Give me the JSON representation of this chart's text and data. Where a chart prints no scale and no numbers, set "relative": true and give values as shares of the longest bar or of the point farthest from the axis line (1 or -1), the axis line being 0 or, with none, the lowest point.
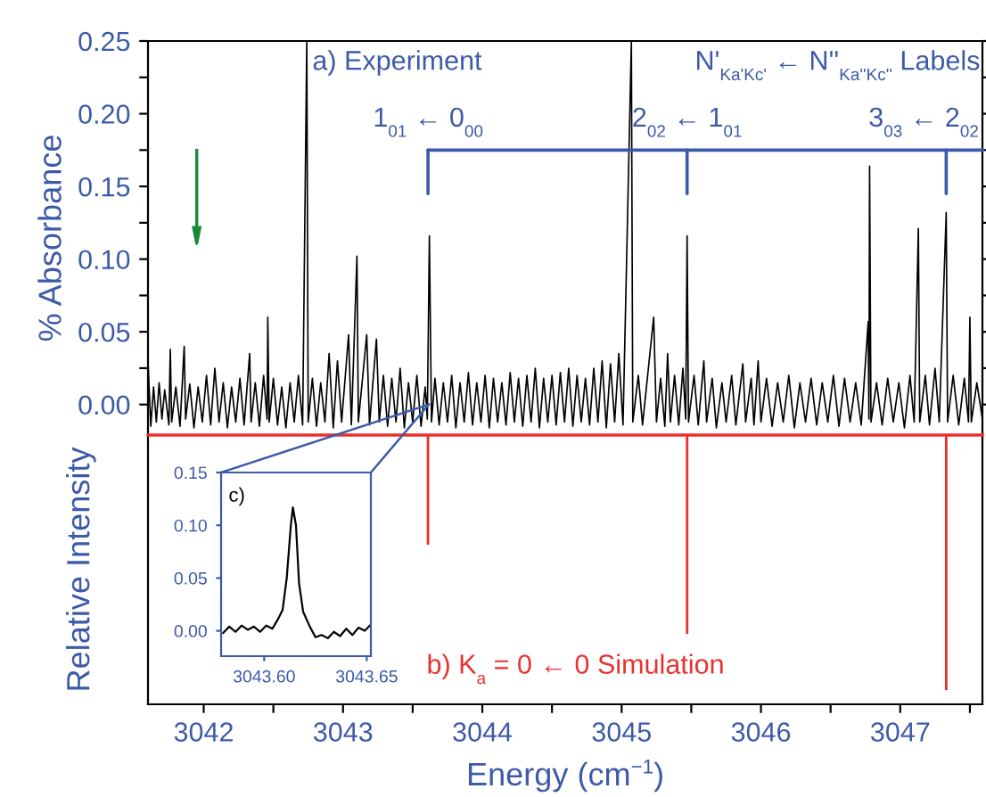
{
  "chart_data": [
    {
      "type": "line",
      "ylabel": "% Absorbance",
      "color": "#000000",
      "tick_labels": "y",
      "grid": false,
      "legend": false,
      "annotations": [
        "a) Experiment",
        "N'$_{Ka'Kc'}$ ← N''$_{Ka''Kc''}$ Labels",
        "1$_{01}$ ← 0$_{00}$",
        "2$_{02}$ ← 1$_{01}$",
        "3$_{03}$ ← 2$_{02}$"
      ],
      "xlim": [
        3041.6,
        3047.59
      ],
      "ylim": [
        -0.021,
        0.25
      ],
      "yticks": [
        {
          "value": 0,
          "label": "0.00"
        },
        {
          "value": 0.025,
          "label": null
        },
        {
          "value": 0.05,
          "label": "0.05"
        },
        {
          "value": 0.075,
          "label": null
        },
        {
          "value": 0.1,
          "label": "0.10"
        },
        {
          "value": 0.125,
          "label": null
        },
        {
          "value": 0.15,
          "label": "0.15"
        },
        {
          "value": 0.175,
          "label": null
        },
        {
          "value": 0.2,
          "label": "0.20"
        },
        {
          "value": 0.225,
          "label": null
        },
        {
          "value": 0.25,
          "label": "0.25"
        }
      ],
      "x": [
        3041.6,
        3041.62,
        3041.64,
        3041.66,
        3041.68,
        3041.7,
        3041.72,
        3041.75,
        3041.76,
        3041.77,
        3041.8,
        3041.83,
        3041.86,
        3041.87,
        3041.9,
        3041.93,
        3041.96,
        3041.99,
        3042.02,
        3042.05,
        3042.08,
        3042.11,
        3042.14,
        3042.17,
        3042.2,
        3042.23,
        3042.26,
        3042.29,
        3042.33,
        3042.34,
        3042.37,
        3042.4,
        3042.43,
        3042.455,
        3042.46,
        3042.47,
        3042.5,
        3042.53,
        3042.56,
        3042.59,
        3042.62,
        3042.65,
        3042.68,
        3042.71,
        3042.74,
        3042.75,
        3042.78,
        3042.81,
        3042.84,
        3042.87,
        3042.9,
        3042.93,
        3042.96,
        3042.99,
        3043.04,
        3043.06,
        3043.1,
        3043.11,
        3043.17,
        3043.19,
        3043.24,
        3043.26,
        3043.29,
        3043.32,
        3043.35,
        3043.38,
        3043.41,
        3043.44,
        3043.47,
        3043.5,
        3043.53,
        3043.56,
        3043.59,
        3043.605,
        3043.62,
        3043.635,
        3043.66,
        3043.69,
        3043.72,
        3043.75,
        3043.78,
        3043.81,
        3043.84,
        3043.87,
        3043.9,
        3043.93,
        3043.96,
        3043.99,
        3044.02,
        3044.05,
        3044.08,
        3044.11,
        3044.14,
        3044.17,
        3044.2,
        3044.23,
        3044.26,
        3044.29,
        3044.32,
        3044.35,
        3044.38,
        3044.41,
        3044.44,
        3044.47,
        3044.5,
        3044.53,
        3044.56,
        3044.59,
        3044.62,
        3044.65,
        3044.68,
        3044.71,
        3044.74,
        3044.77,
        3044.8,
        3044.83,
        3044.86,
        3044.89,
        3044.92,
        3044.95,
        3044.98,
        3045.01,
        3045.07,
        3045.08,
        3045.12,
        3045.15,
        3045.23,
        3045.25,
        3045.28,
        3045.31,
        3045.33,
        3045.35,
        3045.38,
        3045.41,
        3045.44,
        3045.46,
        3045.47,
        3045.48,
        3045.52,
        3045.55,
        3045.59,
        3045.61,
        3045.65,
        3045.68,
        3045.72,
        3045.75,
        3045.79,
        3045.82,
        3045.87,
        3045.89,
        3045.93,
        3045.95,
        3045.98,
        3046.0,
        3046.04,
        3046.08,
        3046.12,
        3046.16,
        3046.2,
        3046.24,
        3046.28,
        3046.32,
        3046.36,
        3046.4,
        3046.44,
        3046.48,
        3046.52,
        3046.56,
        3046.6,
        3046.64,
        3046.68,
        3046.72,
        3046.77,
        3046.775,
        3046.78,
        3046.79,
        3046.83,
        3046.87,
        3046.91,
        3046.95,
        3046.99,
        3047.03,
        3047.07,
        3047.1,
        3047.13,
        3047.14,
        3047.18,
        3047.21,
        3047.25,
        3047.28,
        3047.33,
        3047.34,
        3047.38,
        3047.42,
        3047.46,
        3047.49,
        3047.5,
        3047.51,
        3047.55,
        3047.59
      ],
      "values": [
        0.03,
        -0.015,
        0.012,
        -0.012,
        0.015,
        -0.01,
        0.01,
        -0.014,
        0.038,
        -0.012,
        0.012,
        -0.015,
        0.04,
        -0.01,
        0.014,
        -0.016,
        0.012,
        -0.012,
        0.02,
        -0.014,
        0.025,
        -0.012,
        0.015,
        -0.016,
        0.012,
        -0.012,
        0.018,
        -0.014,
        0.035,
        -0.012,
        0.015,
        -0.015,
        0.02,
        -0.01,
        0.06,
        -0.012,
        0.018,
        -0.014,
        0.012,
        -0.016,
        0.015,
        -0.012,
        0.02,
        -0.014,
        0.25,
        -0.012,
        0.018,
        -0.015,
        0.015,
        -0.012,
        0.035,
        -0.016,
        0.03,
        -0.012,
        0.048,
        -0.014,
        0.102,
        -0.012,
        0.048,
        -0.014,
        0.045,
        -0.012,
        0.02,
        -0.015,
        0.018,
        -0.012,
        0.025,
        -0.016,
        0.015,
        -0.012,
        0.02,
        -0.015,
        0.012,
        -0.01,
        0.116,
        -0.012,
        0.018,
        -0.014,
        0.015,
        -0.012,
        0.02,
        -0.016,
        0.015,
        -0.012,
        0.022,
        -0.014,
        0.015,
        -0.012,
        0.02,
        -0.016,
        0.018,
        -0.012,
        0.015,
        -0.014,
        0.022,
        -0.012,
        0.018,
        -0.015,
        0.02,
        -0.012,
        0.025,
        -0.016,
        0.018,
        -0.012,
        0.02,
        -0.014,
        0.022,
        -0.012,
        0.025,
        -0.015,
        0.02,
        -0.012,
        0.018,
        -0.014,
        0.025,
        -0.012,
        0.03,
        -0.016,
        0.028,
        -0.012,
        0.035,
        -0.014,
        0.25,
        -0.012,
        0.02,
        -0.014,
        0.06,
        -0.012,
        0.018,
        -0.015,
        0.035,
        -0.012,
        0.02,
        -0.014,
        0.025,
        -0.01,
        0.116,
        -0.012,
        0.02,
        -0.014,
        0.03,
        -0.012,
        0.018,
        -0.016,
        0.015,
        -0.012,
        0.02,
        -0.014,
        0.028,
        -0.012,
        0.018,
        -0.014,
        0.03,
        -0.012,
        0.018,
        -0.015,
        0.015,
        -0.012,
        0.02,
        -0.016,
        0.015,
        -0.012,
        0.018,
        -0.014,
        0.015,
        -0.012,
        0.02,
        -0.015,
        0.018,
        -0.012,
        0.015,
        -0.014,
        0.057,
        -0.01,
        0.164,
        -0.012,
        0.015,
        -0.014,
        0.018,
        -0.012,
        0.015,
        -0.016,
        0.02,
        -0.012,
        0.121,
        -0.012,
        0.02,
        -0.014,
        0.025,
        -0.012,
        0.132,
        -0.012,
        0.02,
        -0.014,
        0.018,
        -0.012,
        0.06,
        -0.012,
        0.015,
        -0.01
      ]
    },
    {
      "type": "bar",
      "relative": true,
      "ylabel": "Relative Intensity",
      "xlabel": "Energy (cm$^{−1}$)",
      "tick_labels": "x",
      "color": "#e8312f",
      "annotations": [
        "b) K$_{a}$ = 0 ← 0 Simulation"
      ],
      "x": [
        3043.61,
        3045.47,
        3047.33
      ],
      "values": [
        -0.43,
        -0.78,
        -1
      ],
      "xlim": [
        3041.6,
        3047.59
      ],
      "xticks": [
        3042,
        {
          "value": 3042.5,
          "label": null
        },
        3043,
        {
          "value": 3043.5,
          "label": null
        },
        3044,
        {
          "value": 3044.5,
          "label": null
        },
        3045,
        {
          "value": 3045.5,
          "label": null
        },
        3046,
        {
          "value": 3046.5,
          "label": null
        },
        3047,
        {
          "value": 3047.5,
          "label": null
        }
      ]
    },
    {
      "type": "line",
      "color": "#000000",
      "annotations": [
        "c)"
      ],
      "xlim": [
        3043.579,
        3043.652
      ],
      "ylim": [
        -0.024,
        0.15
      ],
      "xticks": [
        {
          "value": 3043.6,
          "label": "3043.60"
        },
        {
          "value": 3043.65,
          "label": "3043.65"
        }
      ],
      "yticks": [
        {
          "value": 0,
          "label": "0.00"
        },
        {
          "value": 0.05,
          "label": "0.05"
        },
        {
          "value": 0.1,
          "label": "0.10"
        },
        {
          "value": 0.15,
          "label": "0.15"
        }
      ],
      "x": [
        3043.58,
        3043.583,
        3043.586,
        3043.589,
        3043.592,
        3043.595,
        3043.598,
        3043.601,
        3043.604,
        3043.607,
        3043.609,
        3043.611,
        3043.613,
        3043.614,
        3043.6155,
        3043.617,
        3043.619,
        3043.622,
        3043.625,
        3043.628,
        3043.631,
        3043.634,
        3043.637,
        3043.64,
        3043.643,
        3043.646,
        3043.649,
        3043.652
      ],
      "values": [
        -0.002,
        0.004,
        -0.001,
        0.005,
        0.001,
        0.004,
        -0.001,
        0.005,
        0.002,
        0.012,
        0.02,
        0.05,
        0.1,
        0.117,
        0.1,
        0.045,
        0.018,
        0.005,
        -0.006,
        -0.004,
        -0.007,
        -0.001,
        -0.005,
        0.002,
        -0.004,
        0.003,
        0.0,
        0.006
      ]
    }
  ]
}
